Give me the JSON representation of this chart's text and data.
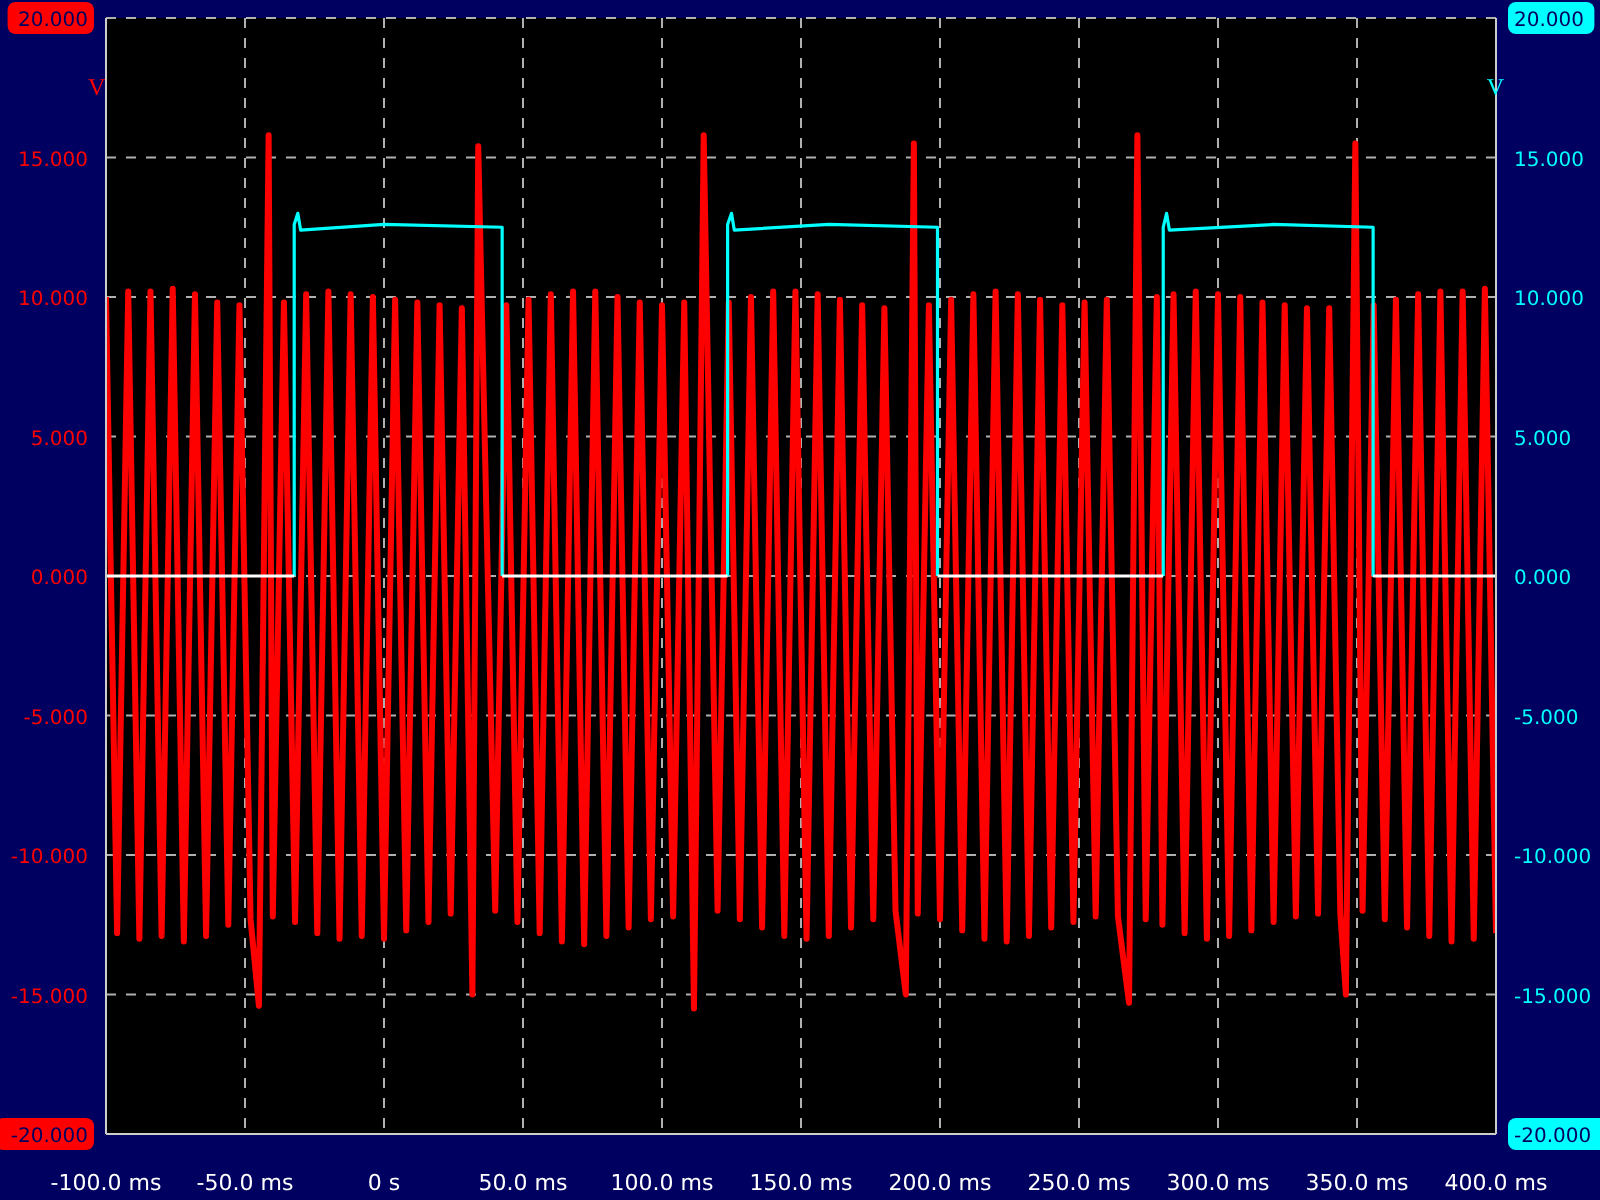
{
  "chart_data": {
    "type": "line",
    "ylabel": "V",
    "y2label": "V",
    "xlim": [
      -100,
      400
    ],
    "xticks": [
      {
        "value": -100,
        "label": "-100.0 ms"
      },
      {
        "value": -50,
        "label": "-50.0 ms"
      },
      {
        "value": 0,
        "label": "0 s"
      },
      {
        "value": 50,
        "label": "50.0 ms"
      },
      {
        "value": 100,
        "label": "100.0 ms"
      },
      {
        "value": 150,
        "label": "150.0 ms"
      },
      {
        "value": 200,
        "label": "200.0 ms"
      },
      {
        "value": 250,
        "label": "250.0 ms"
      },
      {
        "value": 300,
        "label": "300.0 ms"
      },
      {
        "value": 350,
        "label": "350.0 ms"
      },
      {
        "value": 400,
        "label": "400.0 ms"
      }
    ],
    "ylim": [
      -20,
      20
    ],
    "yticks": [
      {
        "value": -20,
        "label": "-20.000"
      },
      {
        "value": -15,
        "label": "-15.000"
      },
      {
        "value": -10,
        "label": "-10.000"
      },
      {
        "value": -5,
        "label": "-5.000"
      },
      {
        "value": 0,
        "label": "0.000"
      },
      {
        "value": 5,
        "label": "5.000"
      },
      {
        "value": 10,
        "label": "10.000"
      },
      {
        "value": 15,
        "label": "15.000"
      },
      {
        "value": 20,
        "label": "20.000"
      }
    ],
    "y2lim": [
      -20,
      20
    ],
    "y2ticks": [
      {
        "value": -20,
        "label": "-20.000"
      },
      {
        "value": -15,
        "label": "-15.000"
      },
      {
        "value": -10,
        "label": "-10.000"
      },
      {
        "value": -5,
        "label": "-5.000"
      },
      {
        "value": 0,
        "label": "0.000"
      },
      {
        "value": 5,
        "label": "5.000"
      },
      {
        "value": 10,
        "label": "10.000"
      },
      {
        "value": 15,
        "label": "15.000"
      },
      {
        "value": 20,
        "label": "20.000"
      }
    ],
    "grid": true,
    "marker": "none",
    "line_style": "solid",
    "series": [
      {
        "color": "#ff0000",
        "x": [
          -100,
          -96,
          -92,
          -88,
          -84,
          -80,
          -76,
          -72,
          -68,
          -64,
          -60,
          -56,
          -52,
          -48,
          -45,
          -41.5,
          -40,
          -36,
          -32,
          -28,
          -24,
          -20,
          -16,
          -12,
          -8,
          -4,
          0,
          4,
          8,
          12,
          16,
          20,
          24,
          28,
          31.8,
          33.9,
          40,
          44,
          48,
          52,
          56,
          60,
          64,
          68,
          72,
          76,
          80,
          84,
          88,
          92,
          96,
          100,
          104,
          108,
          111.5,
          115,
          120,
          124,
          128,
          132,
          136,
          140,
          144,
          148,
          152,
          156,
          160,
          164,
          168,
          172,
          176,
          180,
          184,
          187.7,
          190.6,
          192,
          196,
          200,
          204,
          208,
          212,
          216,
          220,
          224,
          228,
          232,
          236,
          240,
          244,
          248,
          252,
          256,
          260,
          264,
          268,
          271,
          274,
          278,
          280,
          284,
          288,
          292,
          296,
          300,
          304,
          308,
          312,
          316,
          320,
          324,
          328,
          332,
          336,
          340,
          344,
          346,
          349.4,
          352,
          356,
          360,
          364,
          368,
          372,
          376,
          380,
          384,
          388,
          392,
          396,
          400
        ],
        "values": [
          10.0,
          -12.8,
          10.2,
          -13.0,
          10.2,
          -12.9,
          10.3,
          -13.1,
          10.1,
          -12.9,
          9.8,
          -12.5,
          9.7,
          -12.3,
          -15.4,
          15.8,
          -12.2,
          9.8,
          -12.4,
          10.1,
          -12.8,
          10.2,
          -13.0,
          10.1,
          -12.9,
          10.0,
          -13.0,
          9.9,
          -12.7,
          9.8,
          -12.4,
          9.7,
          -12.1,
          9.6,
          -15,
          15.4,
          -12.0,
          9.7,
          -12.4,
          9.9,
          -12.8,
          10.1,
          -13.1,
          10.2,
          -13.2,
          10.2,
          -12.9,
          10.0,
          -12.6,
          9.8,
          -12.3,
          9.7,
          -12.2,
          9.8,
          -15.5,
          15.8,
          -12.0,
          9.8,
          -12.3,
          10.0,
          -12.6,
          10.2,
          -12.9,
          10.2,
          -13.0,
          10.1,
          -12.9,
          9.9,
          -12.6,
          9.7,
          -12.3,
          9.6,
          -12.0,
          -15,
          15.5,
          -12.1,
          9.7,
          -12.3,
          9.9,
          -12.7,
          10.1,
          -13.0,
          10.2,
          -13.1,
          10.1,
          -12.9,
          9.9,
          -12.6,
          9.7,
          -12.4,
          9.8,
          -12.2,
          9.9,
          -12.2,
          -15.3,
          15.8,
          -12.3,
          10.0,
          -12.5,
          10.1,
          -12.8,
          10.2,
          -13.0,
          10.1,
          -12.9,
          10.0,
          -12.7,
          9.8,
          -12.4,
          9.7,
          -12.2,
          9.6,
          -12.1,
          9.6,
          -12.1,
          -15,
          15.5,
          -12.0,
          9.7,
          -12.3,
          9.9,
          -12.6,
          10.1,
          -12.9,
          10.2,
          -13.1,
          10.2,
          -13.0,
          10.3,
          -12.8
        ]
      },
      {
        "color": "#00ffff",
        "axis": "y2",
        "x": [
          -32.3,
          -32.3,
          -31,
          -30,
          0,
          42.5,
          42.5,
          42.6,
          123.6,
          123.6,
          125,
          126,
          160,
          199.1,
          199.1,
          199.2,
          280.3,
          280.3,
          281.5,
          282.5,
          320,
          355.8,
          355.8
        ],
        "values": [
          0,
          12.6,
          13.0,
          12.4,
          12.6,
          12.5,
          0,
          null,
          0,
          12.6,
          13.0,
          12.4,
          12.6,
          12.5,
          0,
          null,
          0,
          12.5,
          13.0,
          12.4,
          12.6,
          12.5,
          0
        ]
      },
      {
        "color": "#ffffff",
        "axis": "y2",
        "x": [
          -100,
          -32.3,
          -32.2,
          42.5,
          123.6,
          123.7,
          199.1,
          280.3,
          280.4,
          355.8,
          400
        ],
        "values": [
          0,
          0,
          null,
          0,
          0,
          null,
          0,
          0,
          null,
          0,
          0
        ]
      }
    ]
  }
}
